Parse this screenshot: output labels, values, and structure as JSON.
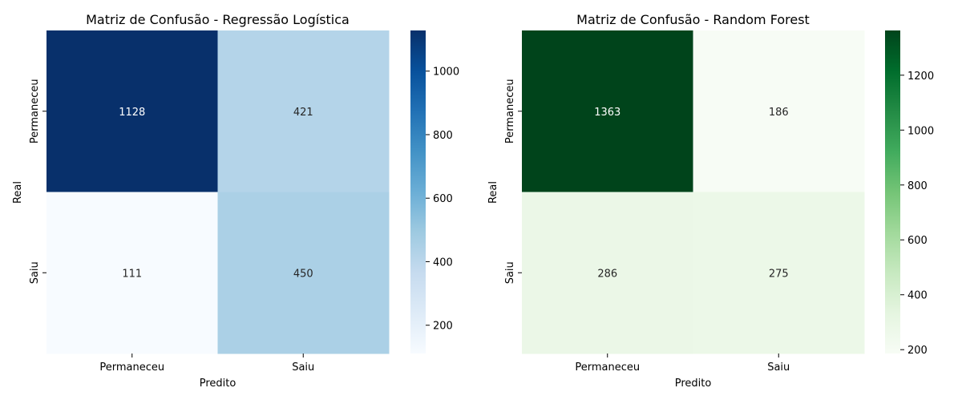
{
  "chart_data": [
    {
      "type": "heatmap",
      "title": "Matriz de Confusão - Regressão Logística",
      "xlabel": "Predito",
      "ylabel": "Real",
      "x_categories": [
        "Permaneceu",
        "Saiu"
      ],
      "y_categories": [
        "Permaneceu",
        "Saiu"
      ],
      "values": [
        [
          1128,
          421
        ],
        [
          111,
          450
        ]
      ],
      "colormap": "Blues",
      "colorbar": {
        "range": [
          111,
          1128
        ],
        "ticks": [
          200,
          400,
          600,
          800,
          1000
        ]
      }
    },
    {
      "type": "heatmap",
      "title": "Matriz de Confusão - Random Forest",
      "xlabel": "Predito",
      "ylabel": "Real",
      "x_categories": [
        "Permaneceu",
        "Saiu"
      ],
      "y_categories": [
        "Permaneceu",
        "Saiu"
      ],
      "values": [
        [
          1363,
          186
        ],
        [
          286,
          275
        ]
      ],
      "colormap": "Greens",
      "colorbar": {
        "range": [
          186,
          1363
        ],
        "ticks": [
          200,
          400,
          600,
          800,
          1000,
          1200
        ]
      }
    }
  ]
}
